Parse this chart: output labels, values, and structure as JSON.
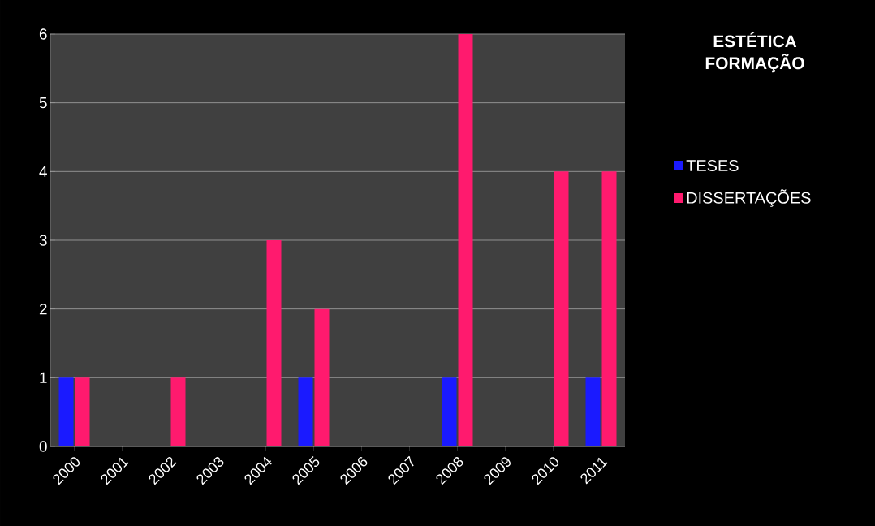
{
  "chart_data": {
    "type": "bar",
    "legend_title": "ESTÉTICA FORMAÇÃO",
    "categories": [
      "2000",
      "2001",
      "2002",
      "2003",
      "2004",
      "2005",
      "2006",
      "2007",
      "2008",
      "2009",
      "2010",
      "2011"
    ],
    "series": [
      {
        "name": "TESES",
        "color": "#1a1aff",
        "values": [
          1,
          0,
          0,
          0,
          0,
          1,
          0,
          0,
          1,
          0,
          0,
          1
        ]
      },
      {
        "name": "DISSERTAÇÕES",
        "color": "#ff1a6e",
        "values": [
          1,
          0,
          1,
          0,
          3,
          2,
          0,
          0,
          6,
          0,
          4,
          4
        ]
      }
    ],
    "ylim": [
      0,
      6
    ],
    "yticks": [
      0,
      1,
      2,
      3,
      4,
      5,
      6
    ],
    "grid": "y",
    "legend": "right"
  }
}
